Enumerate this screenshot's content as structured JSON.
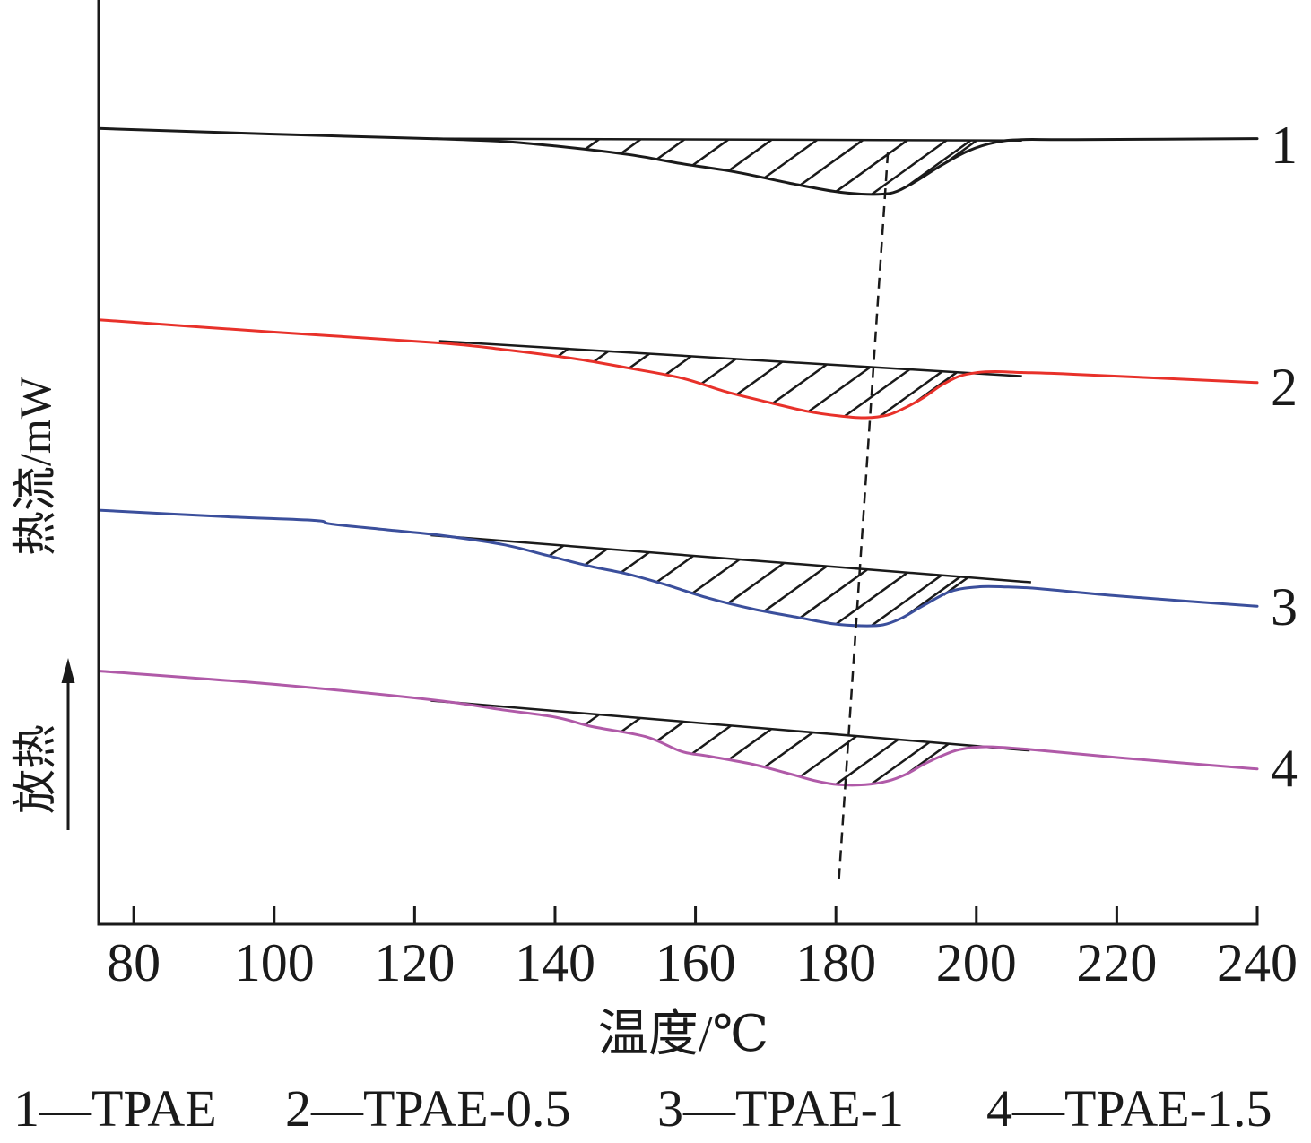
{
  "chart_data": {
    "type": "line",
    "xlabel": "温度/℃",
    "ylabel": "热流/mW",
    "exo_label": "放热",
    "xlim": [
      75,
      240
    ],
    "ylim": [
      0,
      100
    ],
    "xticks": [
      80,
      100,
      120,
      140,
      160,
      180,
      200,
      220,
      240
    ],
    "grid": false,
    "legend_position": "bottom",
    "legend_separator": "—",
    "series": [
      {
        "label": "1",
        "name": "TPAE",
        "color": "#1a1a1a",
        "x": [
          75.0,
          99.3,
          122.3,
          132.5,
          140.1,
          150.3,
          158.0,
          165.7,
          173.3,
          179.7,
          183.6,
          186.7,
          188.7,
          191.2,
          195.0,
          198.9,
          202.7,
          206.5,
          214.2,
          240.0
        ],
        "y": [
          86.1,
          85.5,
          85.0,
          84.7,
          84.2,
          83.3,
          82.3,
          81.4,
          80.2,
          79.3,
          79.0,
          79.0,
          79.3,
          80.3,
          82.1,
          83.7,
          84.6,
          84.9,
          84.9,
          85.0
        ],
        "baseline": {
          "x": [
            122.3,
            206.5
          ],
          "y": [
            85.0,
            84.8
          ]
        }
      },
      {
        "label": "2",
        "name": "TPAE-0.5",
        "color": "#e8312a",
        "x": [
          75.0,
          99.3,
          123.5,
          132.5,
          142.7,
          150.3,
          158.0,
          164.4,
          170.8,
          175.9,
          180.4,
          184.2,
          187.4,
          189.9,
          192.5,
          195.0,
          197.6,
          200.2,
          202.7,
          206.5,
          214.2,
          240.0
        ],
        "y": [
          65.4,
          64.1,
          62.9,
          62.2,
          61.2,
          60.2,
          59.1,
          57.6,
          56.4,
          55.5,
          55.0,
          54.8,
          55.1,
          55.9,
          57.0,
          58.3,
          59.3,
          59.7,
          59.8,
          59.7,
          59.5,
          58.6
        ],
        "baseline": {
          "x": [
            123.5,
            206.5
          ],
          "y": [
            63.1,
            59.3
          ]
        }
      },
      {
        "label": "3",
        "name": "TPAE-1",
        "color": "#3b4f9c",
        "x": [
          75.0,
          92.9,
          105.7,
          108.2,
          117.1,
          123.5,
          132.5,
          138.9,
          145.2,
          150.3,
          155.5,
          161.8,
          168.2,
          174.6,
          179.7,
          183.6,
          186.7,
          189.3,
          192.5,
          196.3,
          200.2,
          204.0,
          209.1,
          220.6,
          240.0
        ],
        "y": [
          44.8,
          44.1,
          43.7,
          43.3,
          42.6,
          42.1,
          41.1,
          39.9,
          38.7,
          37.9,
          36.8,
          35.3,
          34.1,
          33.2,
          32.5,
          32.3,
          32.4,
          33.1,
          34.5,
          36.0,
          36.5,
          36.5,
          36.3,
          35.5,
          34.4
        ],
        "baseline": {
          "x": [
            122.3,
            207.8
          ],
          "y": [
            42.1,
            37.0
          ]
        }
      },
      {
        "label": "4",
        "name": "TPAE-1.5",
        "color": "#b05aa8",
        "x": [
          75.0,
          99.3,
          122.3,
          132.5,
          140.1,
          145.2,
          152.9,
          158.0,
          161.8,
          168.2,
          173.3,
          177.2,
          180.4,
          184.2,
          187.4,
          189.9,
          192.5,
          195.0,
          197.6,
          201.4,
          207.8,
          220.6,
          240.0
        ],
        "y": [
          27.4,
          26.0,
          24.3,
          23.2,
          22.4,
          21.4,
          20.3,
          18.7,
          18.2,
          17.3,
          16.3,
          15.5,
          15.1,
          15.1,
          15.5,
          16.2,
          17.3,
          18.2,
          18.9,
          19.2,
          18.9,
          18.0,
          16.8
        ],
        "baseline": {
          "x": [
            122.3,
            207.6
          ],
          "y": [
            24.2,
            18.8
          ]
        }
      }
    ],
    "peak_trend_line": {
      "x": [
        187.4,
        180.4
      ],
      "y": [
        83.5,
        4.5
      ],
      "style": "dashed"
    }
  }
}
